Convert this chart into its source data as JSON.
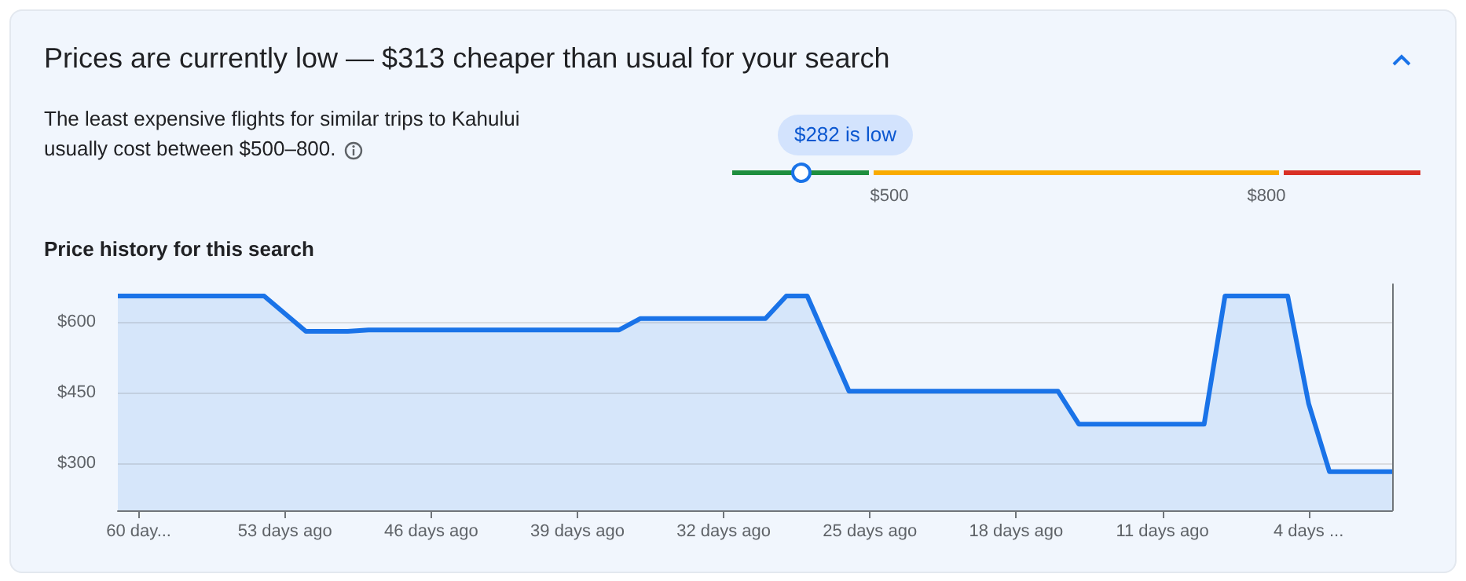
{
  "chart_data": {
    "type": "area",
    "title": "Prices are currently low — $313 cheaper than usual for your search",
    "subtitle": "Price history for this search",
    "annotations": [
      "The least expensive flights for similar trips to Kahului usually cost between $500–800.",
      "$282 is low",
      "$500",
      "$800"
    ],
    "x": [
      -61,
      -54,
      -52,
      -50,
      -49,
      -37,
      -36,
      -30,
      -29,
      -28,
      -26,
      -16,
      -15,
      -9,
      -8,
      -5,
      -4,
      -3,
      0
    ],
    "series": [
      {
        "color": "#1a73e8",
        "values": [
          655,
          655,
          580,
          580,
          583,
          583,
          607,
          607,
          655,
          655,
          453,
          453,
          383,
          383,
          655,
          655,
          427,
          282,
          282
        ]
      }
    ],
    "xlim": [
      -61,
      0
    ],
    "xticks": [
      {
        "value": -60,
        "label": "60 day..."
      },
      {
        "value": -53,
        "label": "53 days ago"
      },
      {
        "value": -46,
        "label": "46 days ago"
      },
      {
        "value": -39,
        "label": "39 days ago"
      },
      {
        "value": -32,
        "label": "32 days ago"
      },
      {
        "value": -25,
        "label": "25 days ago"
      },
      {
        "value": -18,
        "label": "18 days ago"
      },
      {
        "value": -11,
        "label": "11 days ago"
      },
      {
        "value": -4,
        "label": "4 days ..."
      }
    ],
    "ylim": [
      200,
      680
    ],
    "yticks": [
      {
        "value": 300,
        "label": "$300"
      },
      {
        "value": 450,
        "label": "$450"
      },
      {
        "value": 600,
        "label": "$600"
      }
    ],
    "grid": "y",
    "marker": "none"
  }
}
